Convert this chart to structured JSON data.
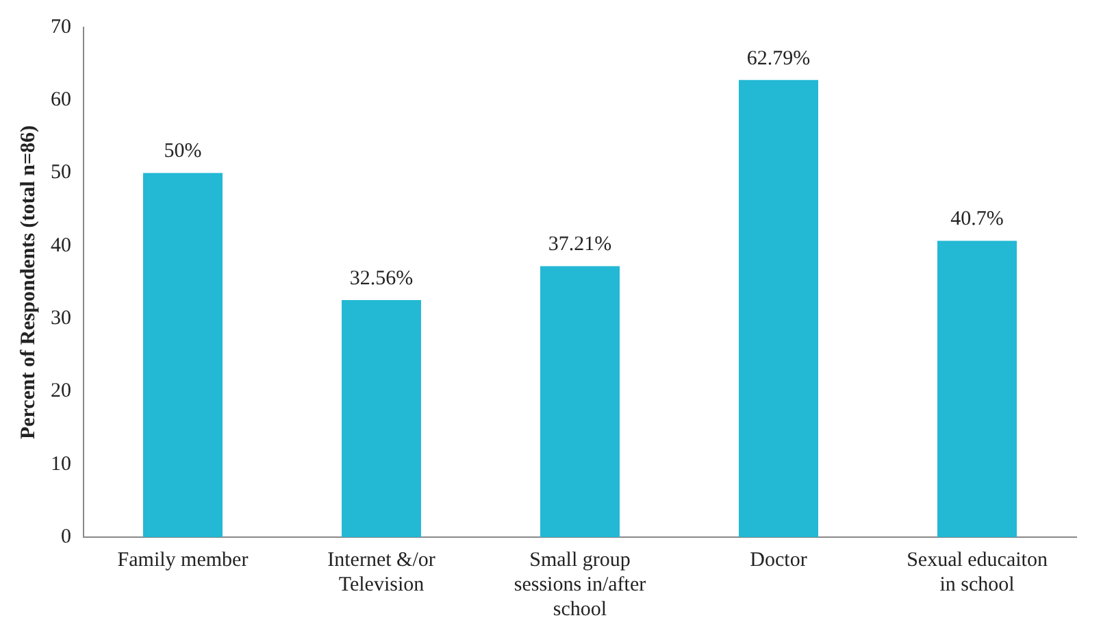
{
  "chart_data": {
    "type": "bar",
    "ylabel": "Percent of Respondents (total n=86)",
    "categories": [
      "Family member",
      "Internet &/or Television",
      "Small group sessions in/after school",
      "Doctor",
      "Sexual educaiton in school"
    ],
    "values": [
      50,
      32.56,
      37.21,
      62.79,
      40.7
    ],
    "value_labels": [
      "50%",
      "32.56%",
      "37.21%",
      "62.79%",
      "40.7%"
    ],
    "color": "#23b8d4",
    "ylim": [
      0,
      70
    ],
    "yticks": [
      0,
      10,
      20,
      30,
      40,
      50,
      60,
      70
    ],
    "grid": false,
    "legend": false
  }
}
